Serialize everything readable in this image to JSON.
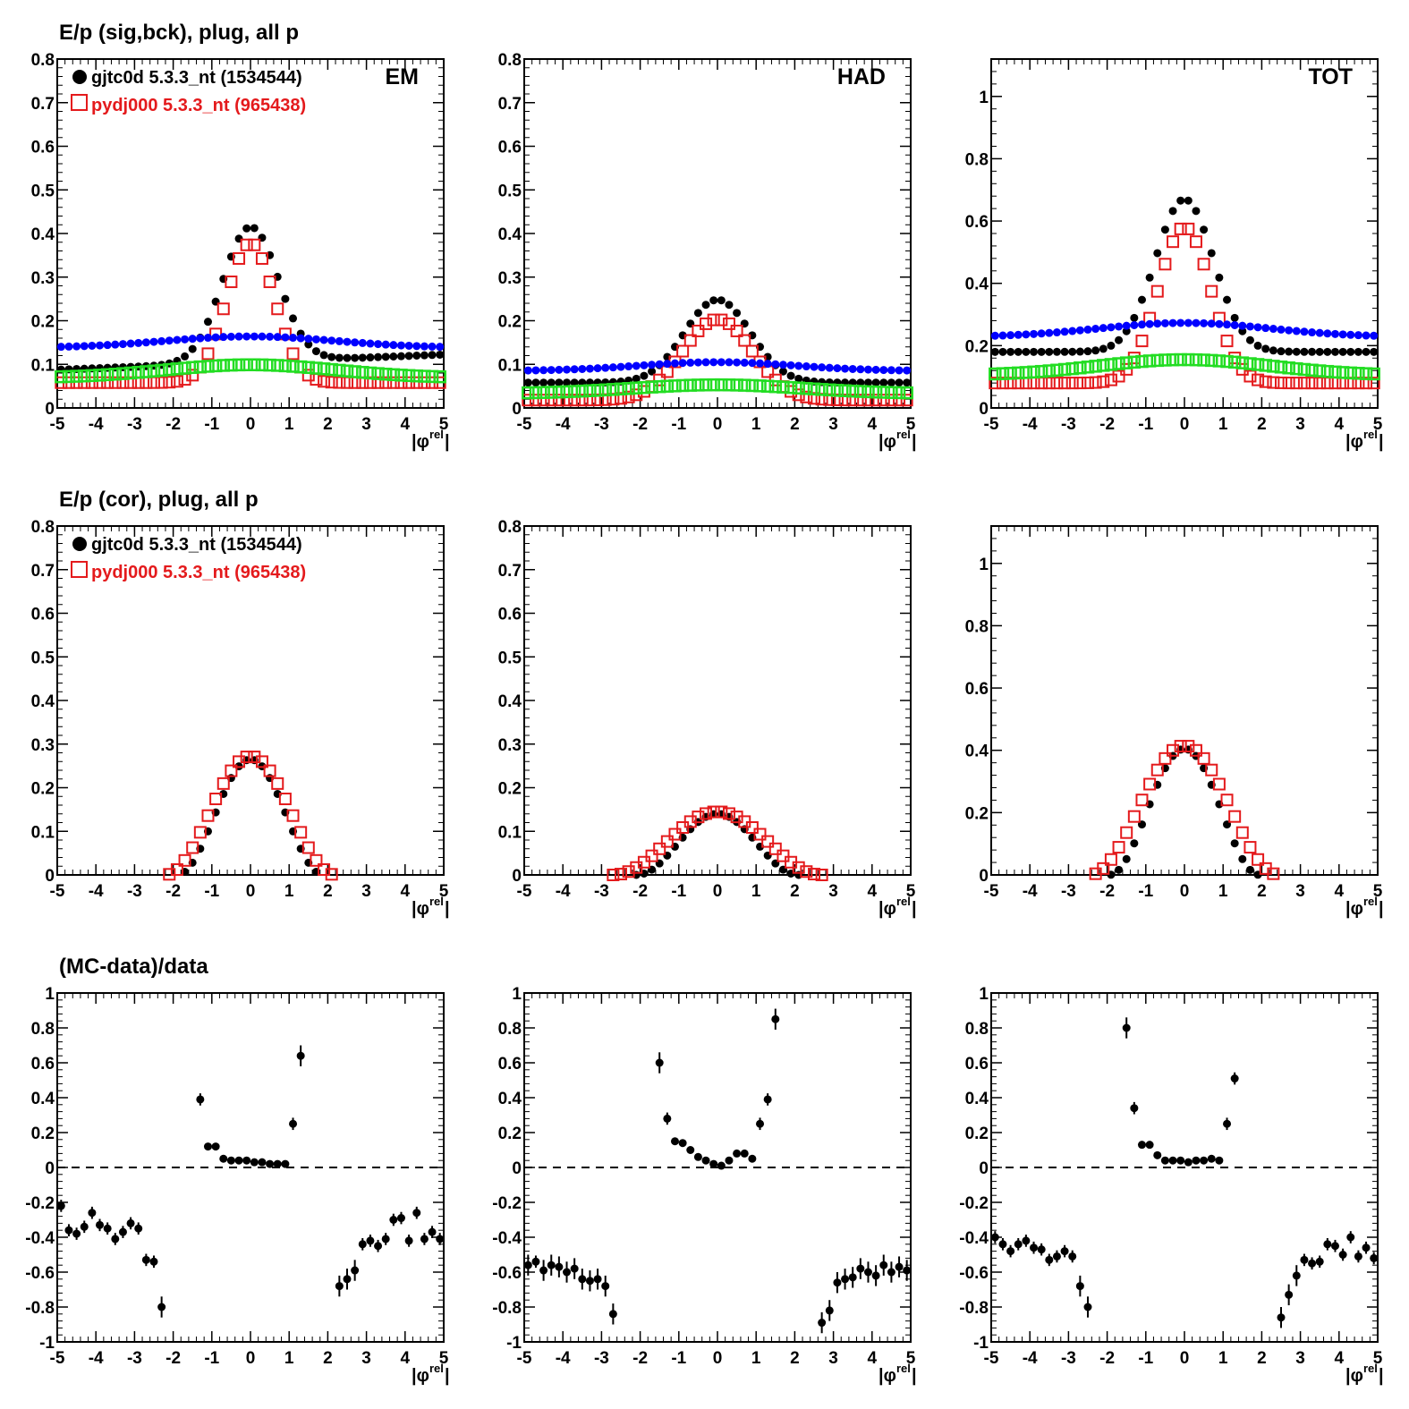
{
  "figure": {
    "row_titles": [
      "E/p (sig,bck), plug, all p",
      "E/p (cor), plug, all p",
      "(MC-data)/data"
    ],
    "x_label_main": "|φ",
    "x_label_sup": "rel",
    "x_label_close": "|"
  },
  "colors": {
    "data": "#000000",
    "mc": "#e41a1c",
    "bck_data": "#0000ff",
    "bck_mc": "#22dd22"
  },
  "chart_data": [
    {
      "type": "scatter",
      "panel": "EM",
      "row": 1,
      "label": "EM",
      "xlim": [
        -5,
        5
      ],
      "ylim": [
        0,
        0.8
      ],
      "yticks": [
        0,
        0.1,
        0.2,
        0.3,
        0.4,
        0.5,
        0.6,
        0.7,
        0.8
      ],
      "xticks": [
        -5,
        -4,
        -3,
        -2,
        -1,
        0,
        1,
        2,
        3,
        4,
        5
      ],
      "legend": [
        "gjtc0d 5.3.3_nt (1534544)",
        "pydj000 5.3.3_nt (965438)"
      ],
      "legend_position": "top-left",
      "series": [
        {
          "name": "gjtc0d 5.3.3_nt (1534544)",
          "style": "black-dot",
          "shape": "gauss",
          "amp": 0.31,
          "sigma": 0.72,
          "base": 0.105,
          "slope": 0.0035
        },
        {
          "name": "pydj000 5.3.3_nt (965438)",
          "style": "red-square",
          "shape": "gauss",
          "amp": 0.32,
          "sigma": 0.62,
          "base": 0.058,
          "slope": 0
        },
        {
          "style": "blue-dot",
          "shape": "gauss",
          "amp": 0.026,
          "sigma": 2.2,
          "base": 0.138,
          "slope": 0
        },
        {
          "style": "green-square",
          "shape": "gauss",
          "amp": 0.03,
          "sigma": 2.2,
          "base": 0.069,
          "slope": 0
        }
      ]
    },
    {
      "type": "scatter",
      "panel": "HAD",
      "row": 1,
      "label": "HAD",
      "xlim": [
        -5,
        5
      ],
      "ylim": [
        0,
        0.8
      ],
      "yticks": [
        0,
        0.1,
        0.2,
        0.3,
        0.4,
        0.5,
        0.6,
        0.7,
        0.8
      ],
      "xticks": [
        -5,
        -4,
        -3,
        -2,
        -1,
        0,
        1,
        2,
        3,
        4,
        5
      ],
      "series": [
        {
          "style": "black-dot",
          "shape": "gauss",
          "amp": 0.19,
          "sigma": 0.85,
          "base": 0.058,
          "slope": 0
        },
        {
          "style": "red-square",
          "shape": "gauss",
          "amp": 0.185,
          "sigma": 0.9,
          "base": 0.018,
          "slope": 0
        },
        {
          "style": "blue-dot",
          "shape": "gauss",
          "amp": 0.02,
          "sigma": 2.0,
          "base": 0.085,
          "slope": 0
        },
        {
          "style": "green-square",
          "shape": "gauss",
          "amp": 0.02,
          "sigma": 2.2,
          "base": 0.033,
          "slope": 0
        }
      ]
    },
    {
      "type": "scatter",
      "panel": "TOT",
      "row": 1,
      "label": "TOT",
      "xlim": [
        -5,
        5
      ],
      "ylim": [
        0,
        1.12
      ],
      "yticks": [
        0,
        0.2,
        0.4,
        0.6,
        0.8,
        1
      ],
      "xticks": [
        -5,
        -4,
        -3,
        -2,
        -1,
        0,
        1,
        2,
        3,
        4,
        5
      ],
      "series": [
        {
          "style": "black-dot",
          "shape": "gauss",
          "amp": 0.49,
          "sigma": 0.75,
          "base": 0.18,
          "slope": 0
        },
        {
          "style": "red-square",
          "shape": "gauss",
          "amp": 0.5,
          "sigma": 0.68,
          "base": 0.08,
          "slope": 0
        },
        {
          "style": "blue-dot",
          "shape": "gauss",
          "amp": 0.045,
          "sigma": 2.2,
          "base": 0.228,
          "slope": 0
        },
        {
          "style": "green-square",
          "shape": "gauss",
          "amp": 0.05,
          "sigma": 2.2,
          "base": 0.105,
          "slope": 0
        }
      ]
    },
    {
      "type": "scatter",
      "panel": "EM",
      "row": 2,
      "xlim": [
        -5,
        5
      ],
      "ylim": [
        0,
        0.8
      ],
      "yticks": [
        0,
        0.1,
        0.2,
        0.3,
        0.4,
        0.5,
        0.6,
        0.7,
        0.8
      ],
      "xticks": [
        -5,
        -4,
        -3,
        -2,
        -1,
        0,
        1,
        2,
        3,
        4,
        5
      ],
      "legend": [
        "gjtc0d 5.3.3_nt (1534544)",
        "pydj000 5.3.3_nt (965438)"
      ],
      "legend_position": "top-left",
      "series": [
        {
          "name": "gjtc0d 5.3.3_nt (1534544)",
          "style": "black-dot",
          "shape": "cos2",
          "amp": 0.265,
          "halfwidth": 1.9
        },
        {
          "name": "pydj000 5.3.3_nt (965438)",
          "style": "red-square",
          "shape": "cos2",
          "amp": 0.272,
          "halfwidth": 2.2
        }
      ]
    },
    {
      "type": "scatter",
      "panel": "HAD",
      "row": 2,
      "xlim": [
        -5,
        5
      ],
      "ylim": [
        0,
        0.8
      ],
      "yticks": [
        0,
        0.1,
        0.2,
        0.3,
        0.4,
        0.5,
        0.6,
        0.7,
        0.8
      ],
      "xticks": [
        -5,
        -4,
        -3,
        -2,
        -1,
        0,
        1,
        2,
        3,
        4,
        5
      ],
      "series": [
        {
          "style": "black-dot",
          "shape": "cos2",
          "amp": 0.14,
          "halfwidth": 2.1
        },
        {
          "style": "red-square",
          "shape": "cos2",
          "amp": 0.145,
          "halfwidth": 2.7
        }
      ]
    },
    {
      "type": "scatter",
      "panel": "TOT",
      "row": 2,
      "xlim": [
        -5,
        5
      ],
      "ylim": [
        0,
        1.12
      ],
      "yticks": [
        0,
        0.2,
        0.4,
        0.6,
        0.8,
        1
      ],
      "xticks": [
        -5,
        -4,
        -3,
        -2,
        -1,
        0,
        1,
        2,
        3,
        4,
        5
      ],
      "series": [
        {
          "style": "black-dot",
          "shape": "cos2",
          "amp": 0.405,
          "halfwidth": 1.95
        },
        {
          "style": "red-square",
          "shape": "cos2",
          "amp": 0.415,
          "halfwidth": 2.45
        }
      ]
    },
    {
      "type": "scatter",
      "panel": "EM",
      "row": 3,
      "xlim": [
        -5,
        5
      ],
      "ylim": [
        -1,
        1
      ],
      "yticks": [
        -1,
        -0.8,
        -0.6,
        -0.4,
        -0.2,
        0,
        0.2,
        0.4,
        0.6,
        0.8,
        1
      ],
      "xticks": [
        -5,
        -4,
        -3,
        -2,
        -1,
        0,
        1,
        2,
        3,
        4,
        5
      ],
      "reference_line": 0,
      "series": [
        {
          "style": "black-dot-err",
          "points": [
            [
              -4.9,
              -0.22
            ],
            [
              -4.7,
              -0.36
            ],
            [
              -4.5,
              -0.38
            ],
            [
              -4.3,
              -0.34
            ],
            [
              -4.1,
              -0.26
            ],
            [
              -3.9,
              -0.33
            ],
            [
              -3.7,
              -0.35
            ],
            [
              -3.5,
              -0.41
            ],
            [
              -3.3,
              -0.37
            ],
            [
              -3.1,
              -0.32
            ],
            [
              -2.9,
              -0.35
            ],
            [
              -2.7,
              -0.53
            ],
            [
              -2.5,
              -0.54
            ],
            [
              -2.3,
              -0.8
            ],
            [
              -1.3,
              0.39
            ],
            [
              -1.1,
              0.12
            ],
            [
              -0.9,
              0.12
            ],
            [
              -0.7,
              0.05
            ],
            [
              -0.5,
              0.04
            ],
            [
              -0.3,
              0.04
            ],
            [
              -0.1,
              0.04
            ],
            [
              0.1,
              0.03
            ],
            [
              0.3,
              0.03
            ],
            [
              0.5,
              0.02
            ],
            [
              0.7,
              0.02
            ],
            [
              0.9,
              0.02
            ],
            [
              1.1,
              0.25
            ],
            [
              1.3,
              0.64
            ],
            [
              2.3,
              -0.68
            ],
            [
              2.5,
              -0.64
            ],
            [
              2.7,
              -0.59
            ],
            [
              2.9,
              -0.44
            ],
            [
              3.1,
              -0.42
            ],
            [
              3.3,
              -0.45
            ],
            [
              3.5,
              -0.41
            ],
            [
              3.7,
              -0.3
            ],
            [
              3.9,
              -0.29
            ],
            [
              4.1,
              -0.42
            ],
            [
              4.3,
              -0.26
            ],
            [
              4.5,
              -0.41
            ],
            [
              4.7,
              -0.37
            ],
            [
              4.9,
              -0.41
            ]
          ]
        }
      ]
    },
    {
      "type": "scatter",
      "panel": "HAD",
      "row": 3,
      "xlim": [
        -5,
        5
      ],
      "ylim": [
        -1,
        1
      ],
      "yticks": [
        -1,
        -0.8,
        -0.6,
        -0.4,
        -0.2,
        0,
        0.2,
        0.4,
        0.6,
        0.8,
        1
      ],
      "xticks": [
        -5,
        -4,
        -3,
        -2,
        -1,
        0,
        1,
        2,
        3,
        4,
        5
      ],
      "reference_line": 0,
      "series": [
        {
          "style": "black-dot-err",
          "points": [
            [
              -4.9,
              -0.56
            ],
            [
              -4.7,
              -0.54
            ],
            [
              -4.5,
              -0.59
            ],
            [
              -4.3,
              -0.56
            ],
            [
              -4.1,
              -0.57
            ],
            [
              -3.9,
              -0.6
            ],
            [
              -3.7,
              -0.58
            ],
            [
              -3.5,
              -0.64
            ],
            [
              -3.3,
              -0.65
            ],
            [
              -3.1,
              -0.64
            ],
            [
              -2.9,
              -0.68
            ],
            [
              -2.7,
              -0.84
            ],
            [
              -1.5,
              0.6
            ],
            [
              -1.3,
              0.28
            ],
            [
              -1.1,
              0.15
            ],
            [
              -0.9,
              0.14
            ],
            [
              -0.7,
              0.1
            ],
            [
              -0.5,
              0.06
            ],
            [
              -0.3,
              0.04
            ],
            [
              -0.1,
              0.02
            ],
            [
              0.1,
              0.01
            ],
            [
              0.3,
              0.04
            ],
            [
              0.5,
              0.08
            ],
            [
              0.7,
              0.08
            ],
            [
              0.9,
              0.05
            ],
            [
              1.1,
              0.25
            ],
            [
              1.3,
              0.39
            ],
            [
              1.5,
              0.85
            ],
            [
              2.7,
              -0.89
            ],
            [
              2.9,
              -0.82
            ],
            [
              3.1,
              -0.66
            ],
            [
              3.3,
              -0.64
            ],
            [
              3.5,
              -0.63
            ],
            [
              3.7,
              -0.58
            ],
            [
              3.9,
              -0.6
            ],
            [
              4.1,
              -0.62
            ],
            [
              4.3,
              -0.56
            ],
            [
              4.5,
              -0.6
            ],
            [
              4.7,
              -0.57
            ],
            [
              4.9,
              -0.59
            ]
          ]
        }
      ]
    },
    {
      "type": "scatter",
      "panel": "TOT",
      "row": 3,
      "xlim": [
        -5,
        5
      ],
      "ylim": [
        -1,
        1
      ],
      "yticks": [
        -1,
        -0.8,
        -0.6,
        -0.4,
        -0.2,
        0,
        0.2,
        0.4,
        0.6,
        0.8,
        1
      ],
      "xticks": [
        -5,
        -4,
        -3,
        -2,
        -1,
        0,
        1,
        2,
        3,
        4,
        5
      ],
      "reference_line": 0,
      "series": [
        {
          "style": "black-dot-err",
          "points": [
            [
              -4.9,
              -0.4
            ],
            [
              -4.7,
              -0.44
            ],
            [
              -4.5,
              -0.48
            ],
            [
              -4.3,
              -0.44
            ],
            [
              -4.1,
              -0.42
            ],
            [
              -3.9,
              -0.46
            ],
            [
              -3.7,
              -0.47
            ],
            [
              -3.5,
              -0.53
            ],
            [
              -3.3,
              -0.51
            ],
            [
              -3.1,
              -0.48
            ],
            [
              -2.9,
              -0.51
            ],
            [
              -2.7,
              -0.68
            ],
            [
              -2.5,
              -0.8
            ],
            [
              -1.5,
              0.8
            ],
            [
              -1.3,
              0.34
            ],
            [
              -1.1,
              0.13
            ],
            [
              -0.9,
              0.13
            ],
            [
              -0.7,
              0.07
            ],
            [
              -0.5,
              0.04
            ],
            [
              -0.3,
              0.04
            ],
            [
              -0.1,
              0.04
            ],
            [
              0.1,
              0.03
            ],
            [
              0.3,
              0.04
            ],
            [
              0.5,
              0.04
            ],
            [
              0.7,
              0.05
            ],
            [
              0.9,
              0.04
            ],
            [
              1.1,
              0.25
            ],
            [
              1.3,
              0.51
            ],
            [
              2.5,
              -0.86
            ],
            [
              2.7,
              -0.73
            ],
            [
              2.9,
              -0.62
            ],
            [
              3.1,
              -0.53
            ],
            [
              3.3,
              -0.55
            ],
            [
              3.5,
              -0.54
            ],
            [
              3.7,
              -0.44
            ],
            [
              3.9,
              -0.45
            ],
            [
              4.1,
              -0.5
            ],
            [
              4.3,
              -0.4
            ],
            [
              4.5,
              -0.51
            ],
            [
              4.7,
              -0.46
            ],
            [
              4.9,
              -0.52
            ]
          ]
        }
      ]
    }
  ]
}
